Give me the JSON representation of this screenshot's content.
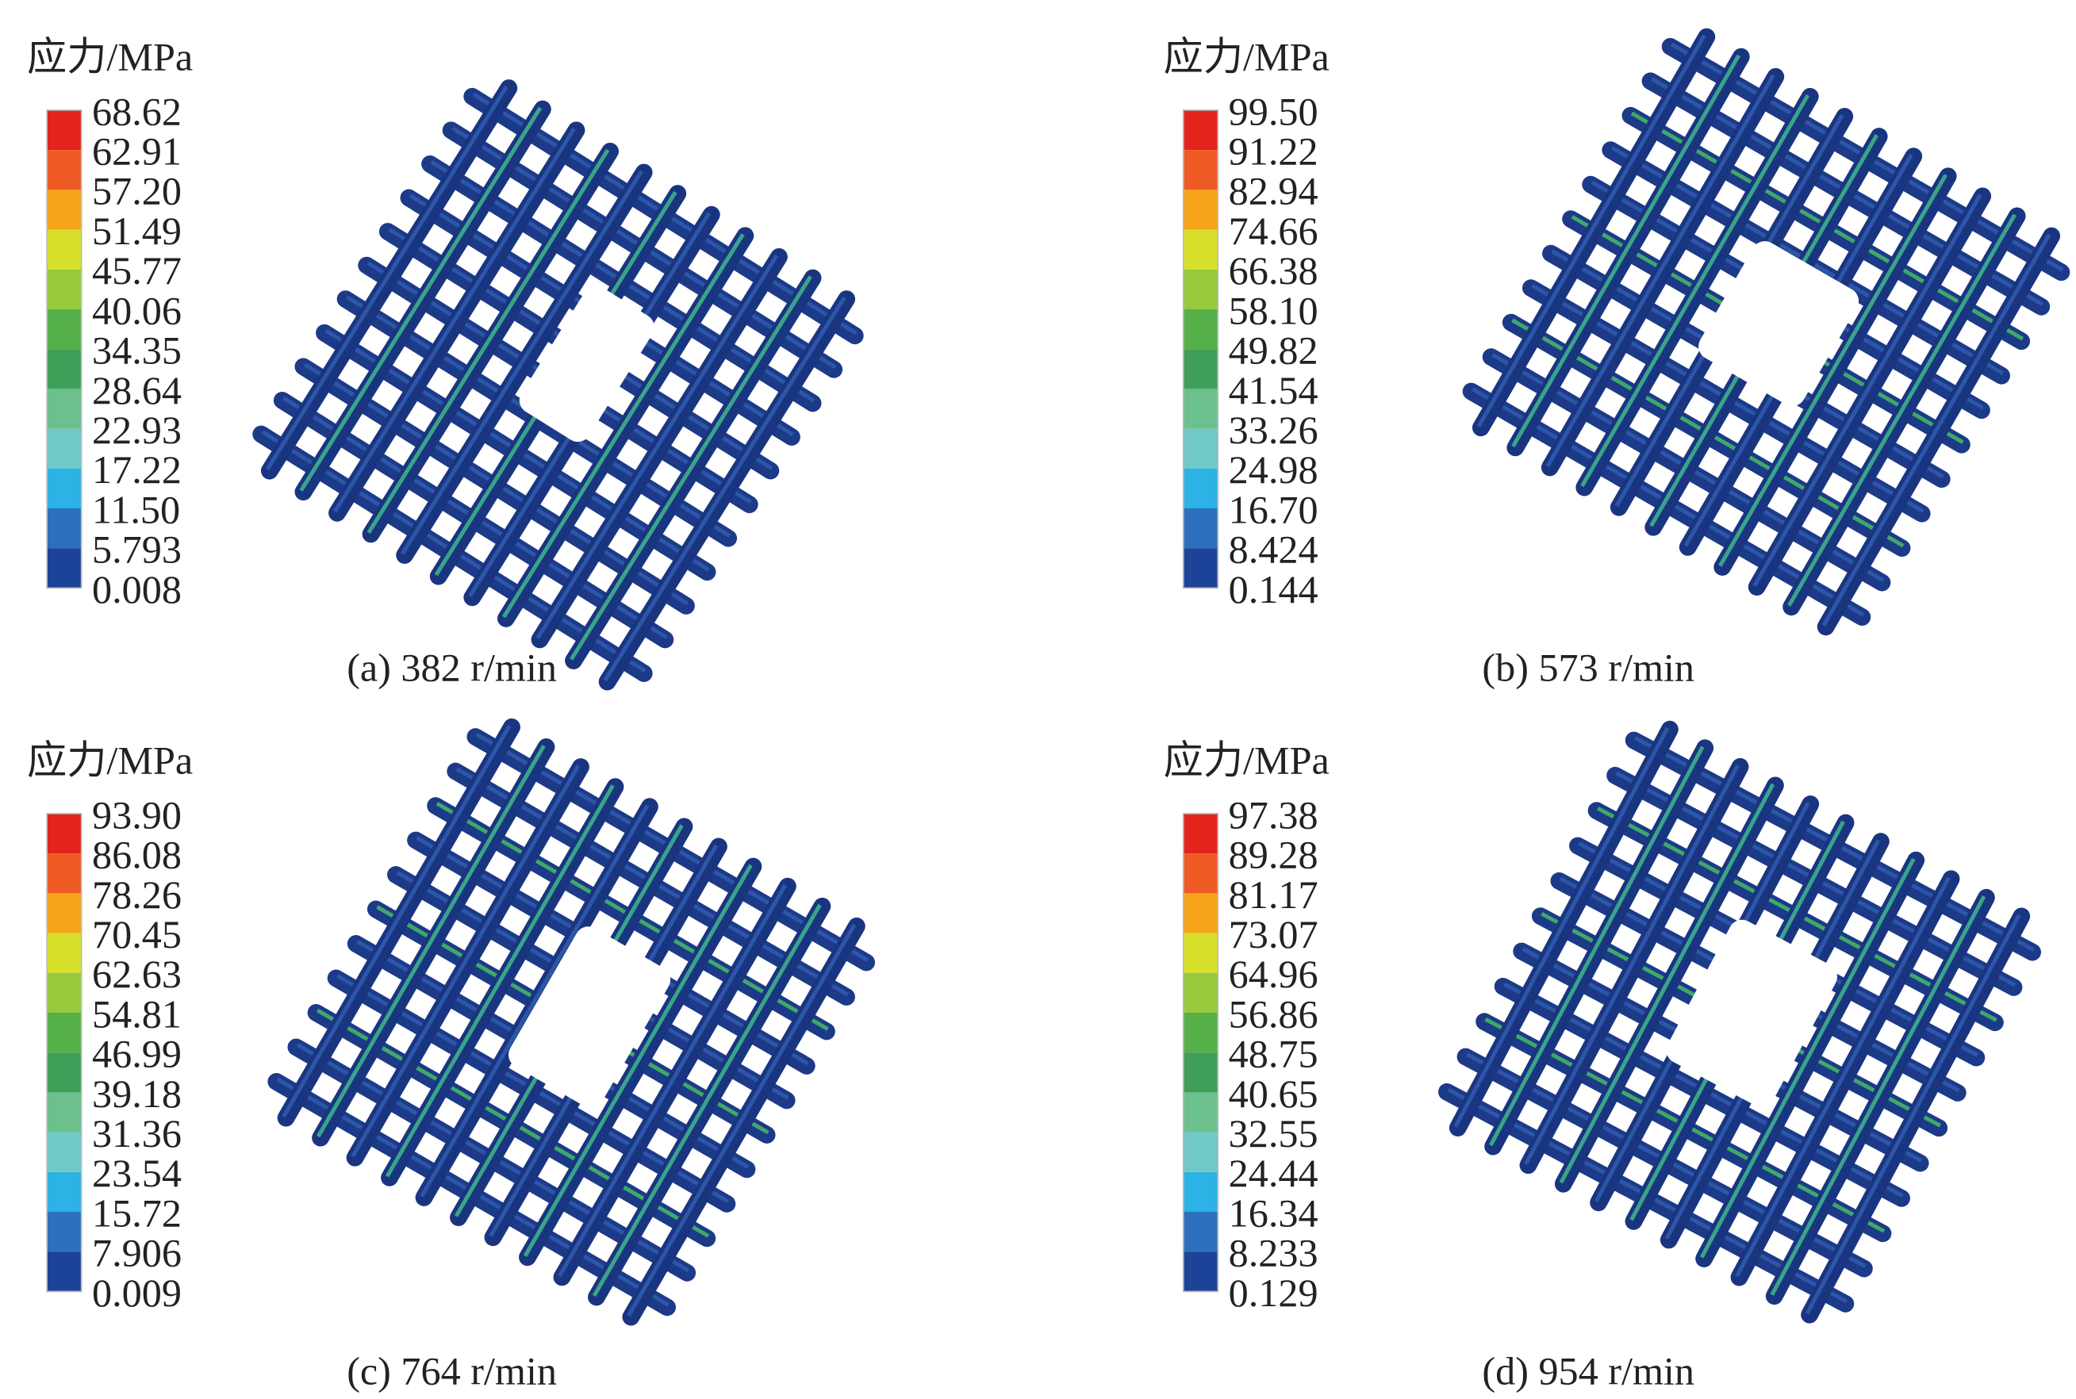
{
  "panels": [
    {
      "legend_title": "应力/MPa",
      "legend_labels": [
        "68.62",
        "62.91",
        "57.20",
        "51.49",
        "45.77",
        "40.06",
        "34.35",
        "28.64",
        "22.93",
        "17.22",
        "11.50",
        "5.793",
        "0.008"
      ],
      "caption": "(a) 382 r/min"
    },
    {
      "legend_title": "应力/MPa",
      "legend_labels": [
        "99.50",
        "91.22",
        "82.94",
        "74.66",
        "66.38",
        "58.10",
        "49.82",
        "41.54",
        "33.26",
        "24.98",
        "16.70",
        "8.424",
        "0.144"
      ],
      "caption": "(b) 573 r/min"
    },
    {
      "legend_title": "应力/MPa",
      "legend_labels": [
        "93.90",
        "86.08",
        "78.26",
        "70.45",
        "62.63",
        "54.81",
        "46.99",
        "39.18",
        "31.36",
        "23.54",
        "15.72",
        "7.906",
        "0.009"
      ],
      "caption": "(c) 764 r/min"
    },
    {
      "legend_title": "应力/MPa",
      "legend_labels": [
        "97.38",
        "89.28",
        "81.17",
        "73.07",
        "64.96",
        "56.86",
        "48.75",
        "40.65",
        "32.55",
        "24.44",
        "16.34",
        "8.233",
        "0.129"
      ],
      "caption": "(d) 954 r/min"
    }
  ]
}
